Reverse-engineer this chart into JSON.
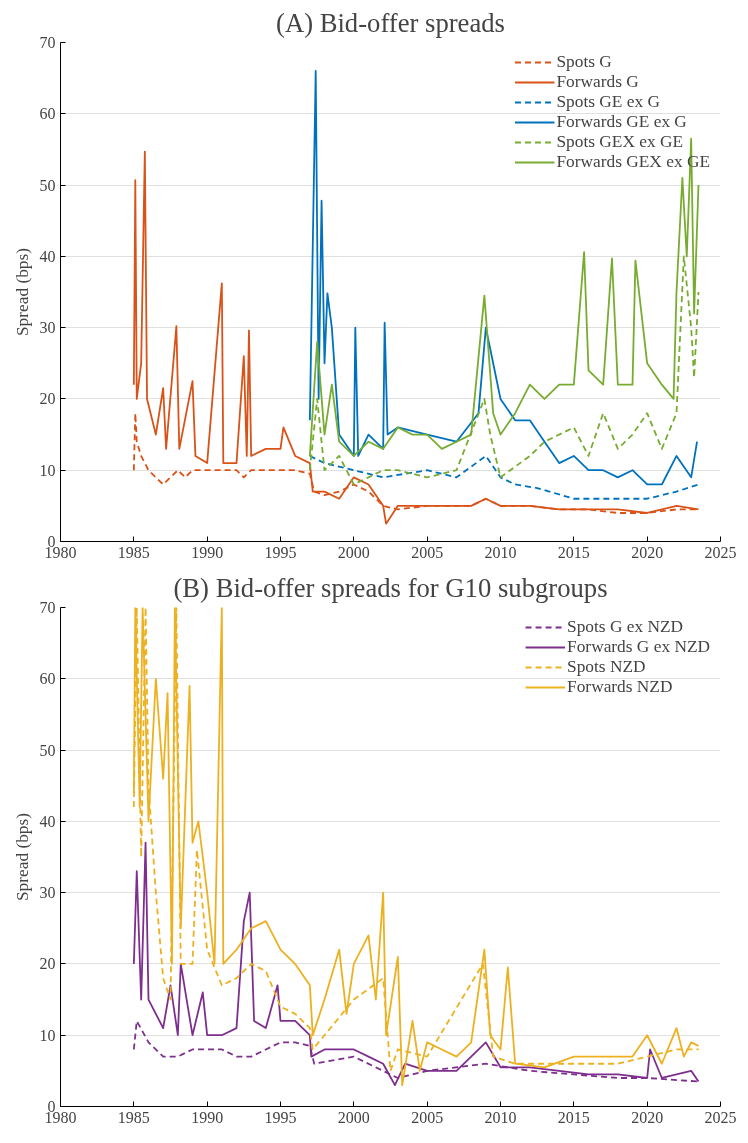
{
  "chart_data": [
    {
      "type": "line",
      "title": "(A) Bid-offer spreads",
      "ylabel": "Spread (bps)",
      "xlim": [
        1980,
        2025
      ],
      "xticks": [
        1980,
        1985,
        1990,
        1995,
        2000,
        2005,
        2010,
        2015,
        2020,
        2025
      ],
      "ylim": [
        0,
        70
      ],
      "yticks": [
        0,
        10,
        20,
        30,
        40,
        50,
        60,
        70
      ],
      "grid": "y",
      "legend": "top right",
      "series": [
        {
          "name": "Spots G",
          "color": "#d95319",
          "line_style": "dashed",
          "x": [
            1985,
            1985.1,
            1985.2,
            1985.5,
            1986,
            1986.5,
            1987,
            1987.5,
            1988,
            1988.5,
            1989,
            1990,
            1991,
            1992,
            1992.5,
            1993,
            1994,
            1995,
            1996,
            1997,
            1997.3,
            1998,
            1999,
            2000,
            2001,
            2002,
            2003,
            2005,
            2008,
            2009,
            2010,
            2012,
            2014,
            2016,
            2018,
            2020,
            2022,
            2023.5
          ],
          "values": [
            10,
            18,
            14,
            12,
            10,
            9,
            8,
            9,
            10,
            9,
            10,
            10,
            10,
            10,
            9,
            10,
            10,
            10,
            10,
            9.5,
            7,
            6.5,
            7,
            8,
            7,
            5,
            4.5,
            5,
            5,
            6,
            5,
            5,
            4.5,
            4.5,
            4,
            4,
            4.5,
            4.5
          ]
        },
        {
          "name": "Forwards G",
          "color": "#d95319",
          "line_style": "solid",
          "x": [
            1985,
            1985.1,
            1985.2,
            1985.5,
            1985.75,
            1985.9,
            1986.5,
            1987,
            1987.2,
            1987.9,
            1988.1,
            1989,
            1989.2,
            1990,
            1991,
            1991.1,
            1992,
            1992.5,
            1992.7,
            1992.85,
            1993,
            1994,
            1995,
            1995.2,
            1996,
            1997,
            1997.2,
            1998,
            1999,
            2000,
            2001,
            2002,
            2002.2,
            2003,
            2005,
            2008,
            2009,
            2010,
            2012,
            2014,
            2016,
            2018,
            2020,
            2022,
            2023.5
          ],
          "values": [
            22,
            50.7,
            20,
            25,
            54.7,
            20,
            15,
            21.5,
            13,
            30.2,
            13,
            22.5,
            12,
            11,
            36.2,
            11,
            11,
            26,
            12,
            29.6,
            12,
            13,
            13,
            16,
            12,
            11,
            7,
            7,
            6,
            9,
            8,
            5,
            2.5,
            5,
            5,
            5,
            6,
            5,
            5,
            4.5,
            4.5,
            4.5,
            4,
            5,
            4.5
          ]
        },
        {
          "name": "Spots GE ex G",
          "color": "#0072bd",
          "line_style": "dashed",
          "x": [
            1997,
            1998,
            2000,
            2002,
            2005,
            2007,
            2009,
            2010,
            2011,
            2012.5,
            2015,
            2018,
            2020,
            2022,
            2023.5
          ],
          "values": [
            12,
            11,
            10,
            9,
            10,
            9,
            12,
            9,
            8,
            7.5,
            6,
            6,
            6,
            7,
            8
          ]
        },
        {
          "name": "Forwards GE ex G",
          "color": "#0072bd",
          "line_style": "solid",
          "x": [
            1997,
            1997.4,
            1997.6,
            1997.8,
            1998,
            1998.2,
            1998.5,
            1999,
            2000,
            2000.1,
            2000.3,
            2001,
            2002,
            2002.1,
            2002.3,
            2003,
            2005,
            2007,
            2008.5,
            2009,
            2009.5,
            2010,
            2011,
            2012,
            2013,
            2014,
            2015,
            2016,
            2017,
            2018,
            2019,
            2020,
            2021,
            2022,
            2023,
            2023.4
          ],
          "values": [
            17,
            66,
            20,
            47.8,
            25,
            34.8,
            30,
            15,
            12,
            30,
            12,
            15,
            13,
            30.7,
            15,
            16,
            15,
            14,
            18,
            30,
            25,
            20,
            17,
            17,
            14,
            11,
            12,
            10,
            10,
            9,
            10,
            8,
            8,
            12,
            9,
            14
          ]
        },
        {
          "name": "Spots GEX ex GE",
          "color": "#77ac30",
          "line_style": "dashed",
          "x": [
            1997,
            1997.5,
            1998,
            1999,
            2000,
            2001,
            2002,
            2003,
            2005,
            2007,
            2008.9,
            2009.3,
            2010,
            2012,
            2013,
            2015,
            2016,
            2017,
            2018,
            2019,
            2020,
            2021,
            2022,
            2022.5,
            2023,
            2023.2,
            2023.5
          ],
          "values": [
            10,
            20,
            10,
            12,
            8,
            9,
            10,
            10,
            9,
            10,
            20,
            15,
            9,
            12,
            14,
            16,
            12,
            18,
            13,
            15,
            18,
            13,
            18,
            40,
            30,
            23,
            35
          ]
        },
        {
          "name": "Forwards GEX ex GE",
          "color": "#77ac30",
          "line_style": "solid",
          "x": [
            1997,
            1997.5,
            1998,
            1998.5,
            1999,
            2000,
            2001,
            2002,
            2003,
            2004,
            2005,
            2006,
            2007,
            2008,
            2008.9,
            2009.5,
            2010,
            2011,
            2012,
            2013,
            2014,
            2015,
            2015.7,
            2016,
            2017,
            2017.6,
            2018,
            2019,
            2019.2,
            2020,
            2021,
            2021.8,
            2022,
            2022.4,
            2022.7,
            2023,
            2023.2,
            2023.5
          ],
          "values": [
            12,
            28,
            15,
            22,
            14,
            12,
            14,
            13,
            16,
            15,
            15,
            13,
            14,
            15,
            34.5,
            18,
            15,
            18,
            22,
            20,
            22,
            22,
            40.6,
            24,
            22,
            39.7,
            22,
            22,
            39.4,
            25,
            22,
            20,
            35,
            51,
            40,
            56.5,
            32,
            50
          ]
        }
      ]
    },
    {
      "type": "line",
      "title": "(B) Bid-offer spreads for G10 subgroups",
      "ylabel": "Spread (bps)",
      "xlim": [
        1980,
        2025
      ],
      "xticks": [
        1980,
        1985,
        1990,
        1995,
        2000,
        2005,
        2010,
        2015,
        2020,
        2025
      ],
      "ylim": [
        0,
        70
      ],
      "yticks": [
        0,
        10,
        20,
        30,
        40,
        50,
        60,
        70
      ],
      "grid": "y",
      "legend": "top right",
      "series": [
        {
          "name": "Spots G ex NZD",
          "color": "#7e2f8e",
          "line_style": "dashed",
          "x": [
            1985,
            1985.2,
            1986,
            1987,
            1988,
            1989,
            1990,
            1991,
            1992,
            1993,
            1994,
            1995,
            1996,
            1997,
            1997.3,
            2000,
            2002,
            2003,
            2005,
            2009,
            2012,
            2015,
            2018,
            2020,
            2023.5
          ],
          "values": [
            8,
            12,
            9,
            7,
            7,
            8,
            8,
            8,
            7,
            7,
            8,
            9,
            9,
            8.5,
            6,
            7,
            5,
            4,
            5,
            6,
            5,
            4.5,
            4,
            4,
            3.5
          ]
        },
        {
          "name": "Forwards G ex NZD",
          "color": "#7e2f8e",
          "line_style": "solid",
          "x": [
            1985,
            1985.2,
            1985.5,
            1985.8,
            1986,
            1987,
            1987.5,
            1988,
            1988.2,
            1989,
            1989.7,
            1990,
            1991,
            1992,
            1992.5,
            1992.9,
            1993.2,
            1994,
            1994.8,
            1995,
            1996,
            1997,
            1997.1,
            1998,
            2000,
            2001,
            2002,
            2002.8,
            2003.5,
            2005,
            2007,
            2009,
            2010,
            2012,
            2014,
            2016,
            2018,
            2020,
            2020.2,
            2021,
            2023,
            2023.5
          ],
          "values": [
            20,
            33,
            15,
            37,
            15,
            11,
            17,
            10,
            20,
            10,
            16,
            10,
            10,
            11,
            26,
            30,
            12,
            11,
            17,
            12,
            12,
            10,
            7,
            8,
            8,
            7,
            6,
            3,
            6,
            5,
            5,
            9,
            5.5,
            5.5,
            5,
            4.5,
            4.5,
            4,
            8,
            4,
            5,
            3.5
          ]
        },
        {
          "name": "Spots NZD",
          "color": "#edb120",
          "line_style": "dashed",
          "x": [
            1985,
            1985.2,
            1985.5,
            1985.8,
            1986,
            1986.5,
            1987,
            1987.5,
            1987.9,
            1988.2,
            1989,
            1989.3,
            1990,
            1991,
            1992,
            1993,
            1994,
            1995,
            1996,
            1997,
            1997.2,
            1998,
            2000,
            2002,
            2002.5,
            2003,
            2005,
            2008.8,
            2009.5,
            2011,
            2013,
            2015,
            2018,
            2020,
            2022,
            2023.5
          ],
          "values": [
            42,
            70,
            35,
            70,
            45,
            30,
            18,
            15,
            70,
            20,
            20,
            36,
            22,
            17,
            18,
            20,
            19,
            14,
            13,
            11,
            8,
            10,
            15,
            18,
            5,
            8,
            7,
            20,
            7,
            6,
            6,
            6,
            6,
            7,
            8,
            8
          ]
        },
        {
          "name": "Forwards NZD",
          "color": "#edb120",
          "line_style": "solid",
          "x": [
            1985,
            1985.1,
            1985.4,
            1985.6,
            1986,
            1986.5,
            1987,
            1987.3,
            1987.6,
            1987.8,
            1988.2,
            1988.8,
            1989,
            1989.4,
            1990,
            1990.5,
            1991,
            1991.1,
            1992,
            1993,
            1994,
            1995,
            1996,
            1997,
            1997.2,
            1998,
            1999,
            1999.5,
            2000,
            2001,
            2001.5,
            2002,
            2002.2,
            2003,
            2003.3,
            2004,
            2004.5,
            2005,
            2006,
            2007,
            2008,
            2008.9,
            2009.3,
            2010,
            2010.5,
            2011,
            2013,
            2015,
            2017,
            2019,
            2020,
            2021,
            2022,
            2022.5,
            2023,
            2023.5
          ],
          "values": [
            44,
            70,
            42,
            70,
            40,
            60,
            46,
            58,
            20,
            70,
            25,
            59,
            37,
            40,
            30,
            20,
            70,
            20,
            22,
            25,
            26,
            22,
            20,
            17,
            10,
            15,
            22,
            13,
            20,
            24,
            15,
            30,
            10,
            21,
            3,
            12,
            5,
            9,
            8,
            7,
            9,
            22,
            10,
            8,
            19.5,
            6,
            5.5,
            7,
            7,
            7,
            10,
            6,
            11,
            7,
            9,
            8.5
          ]
        }
      ]
    }
  ]
}
